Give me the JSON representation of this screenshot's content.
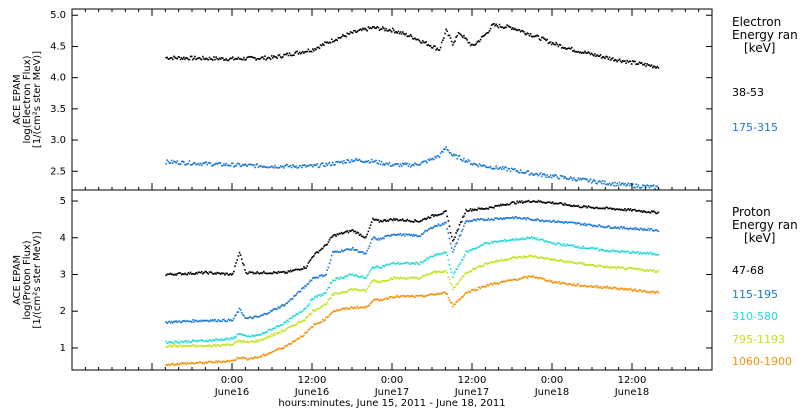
{
  "chart_data": {
    "type": "scatter",
    "time_axis": {
      "ticks": [
        {
          "hm": "0:00",
          "day": "June16"
        },
        {
          "hm": "12:00",
          "day": "June16"
        },
        {
          "hm": "0:00",
          "day": "June17"
        },
        {
          "hm": "12:00",
          "day": "June17"
        },
        {
          "hm": "0:00",
          "day": "June18"
        },
        {
          "hm": "12:00",
          "day": "June18"
        }
      ],
      "xlabel": "hours:minutes, June 15, 2011 - June 18, 2011"
    },
    "panels": [
      {
        "name": "electron",
        "ylabel_1": "ACE EPAM",
        "ylabel_2": "log(Electron Flux)",
        "ylabel_3": "[1/(cm²s ster MeV)]",
        "ylim": [
          2.2,
          5.1
        ],
        "yticks": [
          "2.5",
          "3.0",
          "3.5",
          "4.0",
          "4.5",
          "5.0"
        ],
        "legend_title_1": "Electron",
        "legend_title_2": "Energy ran",
        "legend_unit": "[keV]",
        "series": [
          {
            "name": "38-53",
            "color": "#000000",
            "x": [
              -10,
              0,
              6,
              12,
              15,
              18,
              21,
              24,
              27,
              29,
              31,
              32,
              33,
              34,
              36,
              38,
              39,
              42,
              45,
              48,
              51,
              54,
              57,
              60,
              64
            ],
            "y": [
              4.32,
              4.3,
              4.32,
              4.45,
              4.6,
              4.72,
              4.8,
              4.76,
              4.65,
              4.55,
              4.45,
              4.75,
              4.55,
              4.72,
              4.5,
              4.7,
              4.84,
              4.8,
              4.68,
              4.55,
              4.45,
              4.37,
              4.3,
              4.24,
              4.17
            ]
          },
          {
            "name": "175-315",
            "color": "#1a78d6",
            "x": [
              -10,
              0,
              6,
              12,
              15,
              18,
              21,
              24,
              27,
              29,
              31,
              32,
              33,
              34,
              36,
              38,
              42,
              45,
              48,
              51,
              54,
              57,
              60,
              64
            ],
            "y": [
              2.65,
              2.6,
              2.58,
              2.58,
              2.62,
              2.68,
              2.66,
              2.6,
              2.6,
              2.65,
              2.75,
              2.88,
              2.75,
              2.72,
              2.62,
              2.58,
              2.52,
              2.46,
              2.42,
              2.38,
              2.34,
              2.3,
              2.27,
              2.24
            ]
          }
        ]
      },
      {
        "name": "proton",
        "ylabel_1": "ACE EPAM",
        "ylabel_2": "log(Proton Flux)",
        "ylabel_3": "[1/(cm²s ster MeV)]",
        "ylim": [
          0.4,
          5.3
        ],
        "yticks": [
          "1",
          "2",
          "3",
          "4",
          "5"
        ],
        "legend_title_1": "Proton",
        "legend_title_2": "Energy ran",
        "legend_unit": "[keV]",
        "series": [
          {
            "name": "47-68",
            "color": "#000000",
            "x": [
              -10,
              -4,
              0,
              1,
              2,
              4,
              8,
              11,
              12,
              14,
              15,
              18,
              20,
              21,
              22,
              24,
              28,
              30,
              32,
              33,
              35,
              38,
              42,
              45,
              48,
              52,
              56,
              60,
              64
            ],
            "y": [
              3.0,
              3.05,
              3.0,
              3.6,
              3.05,
              3.05,
              3.05,
              3.2,
              3.5,
              3.8,
              4.05,
              4.2,
              4.0,
              4.5,
              4.45,
              4.5,
              4.45,
              4.6,
              4.7,
              3.9,
              4.75,
              4.8,
              4.95,
              5.0,
              4.95,
              4.85,
              4.8,
              4.75,
              4.68
            ]
          },
          {
            "name": "115-195",
            "color": "#1a78d6",
            "x": [
              -10,
              -4,
              0,
              1,
              2,
              4,
              8,
              11,
              12,
              14,
              15,
              18,
              20,
              21,
              22,
              24,
              28,
              30,
              32,
              33,
              35,
              38,
              42,
              45,
              48,
              52,
              56,
              60,
              64
            ],
            "y": [
              1.7,
              1.75,
              1.75,
              2.05,
              1.8,
              1.85,
              2.2,
              2.7,
              2.9,
              3.0,
              3.6,
              3.7,
              3.55,
              4.0,
              3.95,
              4.1,
              4.05,
              4.3,
              4.4,
              3.6,
              4.45,
              4.5,
              4.55,
              4.5,
              4.45,
              4.38,
              4.3,
              4.25,
              4.2
            ]
          },
          {
            "name": "310-580",
            "color": "#22dada",
            "x": [
              -10,
              -4,
              0,
              1,
              2,
              4,
              8,
              11,
              12,
              14,
              15,
              18,
              20,
              21,
              22,
              24,
              28,
              30,
              32,
              33,
              35,
              38,
              42,
              45,
              48,
              52,
              56,
              60,
              64
            ],
            "y": [
              1.15,
              1.2,
              1.25,
              1.4,
              1.3,
              1.35,
              1.7,
              2.1,
              2.35,
              2.5,
              2.85,
              3.0,
              2.9,
              3.2,
              3.2,
              3.3,
              3.3,
              3.5,
              3.6,
              2.95,
              3.6,
              3.85,
              3.95,
              4.0,
              3.85,
              3.75,
              3.65,
              3.6,
              3.55
            ]
          },
          {
            "name": "795-1193",
            "color": "#c2e21c",
            "x": [
              -10,
              -4,
              0,
              1,
              2,
              4,
              8,
              11,
              12,
              14,
              15,
              18,
              20,
              21,
              22,
              24,
              28,
              30,
              32,
              33,
              35,
              38,
              42,
              45,
              48,
              52,
              56,
              60,
              64
            ],
            "y": [
              1.05,
              1.05,
              1.1,
              1.2,
              1.15,
              1.2,
              1.5,
              1.8,
              2.0,
              2.2,
              2.45,
              2.6,
              2.55,
              2.85,
              2.8,
              2.9,
              2.9,
              3.05,
              3.1,
              2.6,
              3.05,
              3.3,
              3.45,
              3.5,
              3.4,
              3.3,
              3.2,
              3.15,
              3.08
            ]
          },
          {
            "name": "1060-1900",
            "color": "#f2920c",
            "x": [
              -10,
              -4,
              0,
              1,
              2,
              4,
              8,
              11,
              12,
              14,
              15,
              18,
              20,
              21,
              22,
              24,
              28,
              30,
              32,
              33,
              35,
              38,
              42,
              45,
              48,
              52,
              56,
              60,
              64
            ],
            "y": [
              0.55,
              0.6,
              0.65,
              0.75,
              0.7,
              0.75,
              1.05,
              1.4,
              1.6,
              1.8,
              2.0,
              2.1,
              2.1,
              2.3,
              2.3,
              2.4,
              2.4,
              2.45,
              2.5,
              2.15,
              2.5,
              2.7,
              2.85,
              2.95,
              2.8,
              2.7,
              2.65,
              2.58,
              2.5
            ]
          }
        ]
      }
    ]
  }
}
